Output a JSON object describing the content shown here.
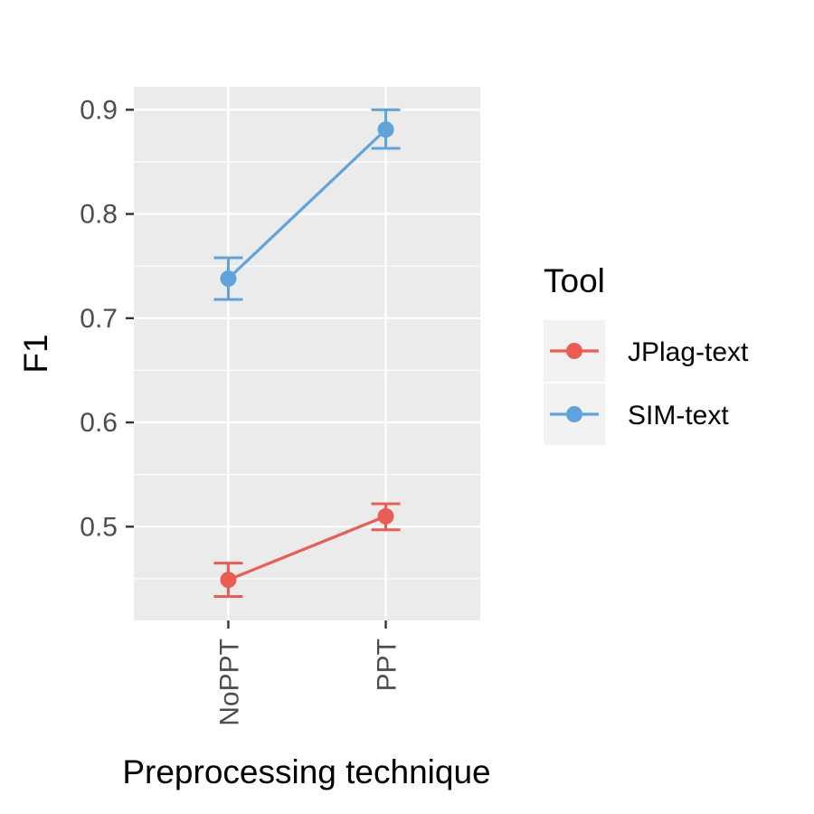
{
  "chart_data": {
    "type": "line",
    "xlabel": "Preprocessing technique",
    "ylabel": "F1",
    "categories": [
      "NoPPT",
      "PPT"
    ],
    "ylim": [
      0.41,
      0.922
    ],
    "yticks": [
      0.5,
      0.6,
      0.7,
      0.8,
      0.9
    ],
    "ytick_labels": [
      "0.5",
      "0.6",
      "0.7",
      "0.8",
      "0.9"
    ],
    "grid": true,
    "legend": {
      "title": "Tool",
      "placement": "right"
    },
    "series": [
      {
        "name": "JPlag-text",
        "color": "#EB5C53",
        "values": [
          0.449,
          0.51
        ],
        "error_low": [
          0.433,
          0.497
        ],
        "error_high": [
          0.465,
          0.522
        ]
      },
      {
        "name": "SIM-text",
        "color": "#5FA3DC",
        "values": [
          0.738,
          0.881
        ],
        "error_low": [
          0.718,
          0.863
        ],
        "error_high": [
          0.758,
          0.9
        ]
      }
    ]
  }
}
